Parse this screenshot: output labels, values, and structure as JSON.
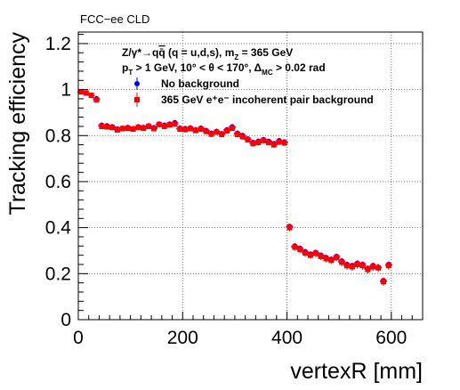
{
  "experiment_label": "FCC−ee CLD",
  "annotation_line1": {
    "parts": [
      "Z/γ*→q",
      "q̄",
      " (q = u,d,s), m",
      "Z",
      " = 365 GeV"
    ]
  },
  "annotation_line2": {
    "parts": [
      "p",
      "T",
      " > 1 GeV, 10° < θ < 170°, Δ",
      "MC",
      " > 0.02 rad"
    ]
  },
  "chart_data": {
    "type": "scatter",
    "xlabel": "vertexR [mm]",
    "ylabel": "Tracking efficiency",
    "xlim": [
      0,
      660
    ],
    "ylim": [
      0,
      1.25
    ],
    "x_ticks": [
      0,
      200,
      400,
      600
    ],
    "x_tick_labels": [
      "0",
      "200",
      "400",
      "600"
    ],
    "y_ticks": [
      0,
      0.2,
      0.4,
      0.6,
      0.8,
      1.0,
      1.2
    ],
    "y_tick_labels": [
      "0",
      "0.2",
      "0.4",
      "0.6",
      "0.8",
      "1",
      "1.2"
    ],
    "grid": true,
    "legend_position": "top-left",
    "series": [
      {
        "name": "No background",
        "color": "#0000ff",
        "marker": "circle",
        "x": [
          5,
          15,
          25,
          35,
          45,
          55,
          65,
          75,
          85,
          95,
          105,
          115,
          125,
          135,
          145,
          155,
          165,
          175,
          185,
          195,
          205,
          215,
          225,
          235,
          245,
          255,
          265,
          275,
          285,
          295,
          305,
          315,
          325,
          335,
          345,
          355,
          365,
          375,
          385,
          395,
          405,
          415,
          425,
          435,
          445,
          455,
          465,
          475,
          485,
          495,
          505,
          515,
          525,
          535,
          545,
          555,
          565,
          575,
          585,
          595
        ],
        "values": [
          0.99,
          0.985,
          0.975,
          0.96,
          0.845,
          0.842,
          0.838,
          0.828,
          0.832,
          0.835,
          0.83,
          0.838,
          0.835,
          0.842,
          0.834,
          0.85,
          0.845,
          0.85,
          0.856,
          0.832,
          0.83,
          0.833,
          0.825,
          0.832,
          0.822,
          0.81,
          0.818,
          0.808,
          0.825,
          0.838,
          0.81,
          0.8,
          0.785,
          0.77,
          0.775,
          0.782,
          0.775,
          0.765,
          0.778,
          0.772,
          0.405,
          0.32,
          0.31,
          0.295,
          0.285,
          0.292,
          0.28,
          0.27,
          0.262,
          0.275,
          0.255,
          0.24,
          0.235,
          0.245,
          0.24,
          0.222,
          0.235,
          0.228,
          0.17,
          0.24
        ]
      },
      {
        "name": "365 GeV e⁺e⁻ incoherent pair background",
        "color": "#ff0000",
        "marker": "square",
        "x": [
          5,
          15,
          25,
          35,
          45,
          55,
          65,
          75,
          85,
          95,
          105,
          115,
          125,
          135,
          145,
          155,
          165,
          175,
          185,
          195,
          205,
          215,
          225,
          235,
          245,
          255,
          265,
          275,
          285,
          295,
          305,
          315,
          325,
          335,
          345,
          355,
          365,
          375,
          385,
          395,
          405,
          415,
          425,
          435,
          445,
          455,
          465,
          475,
          485,
          495,
          505,
          515,
          525,
          535,
          545,
          555,
          565,
          575,
          585,
          595
        ],
        "values": [
          0.99,
          0.985,
          0.975,
          0.955,
          0.84,
          0.838,
          0.835,
          0.825,
          0.83,
          0.832,
          0.828,
          0.835,
          0.832,
          0.84,
          0.83,
          0.848,
          0.84,
          0.846,
          0.85,
          0.828,
          0.826,
          0.83,
          0.822,
          0.828,
          0.818,
          0.806,
          0.815,
          0.805,
          0.82,
          0.832,
          0.805,
          0.795,
          0.782,
          0.765,
          0.77,
          0.778,
          0.77,
          0.76,
          0.772,
          0.768,
          0.4,
          0.315,
          0.305,
          0.29,
          0.28,
          0.288,
          0.275,
          0.265,
          0.258,
          0.27,
          0.25,
          0.235,
          0.23,
          0.24,
          0.235,
          0.218,
          0.23,
          0.225,
          0.165,
          0.235
        ],
        "errors": [
          0.008,
          0.008,
          0.008,
          0.01,
          0.012,
          0.012,
          0.012,
          0.012,
          0.012,
          0.012,
          0.012,
          0.012,
          0.012,
          0.012,
          0.012,
          0.012,
          0.012,
          0.012,
          0.012,
          0.012,
          0.012,
          0.012,
          0.012,
          0.012,
          0.012,
          0.012,
          0.012,
          0.012,
          0.012,
          0.012,
          0.013,
          0.013,
          0.013,
          0.013,
          0.013,
          0.013,
          0.013,
          0.013,
          0.013,
          0.013,
          0.016,
          0.016,
          0.016,
          0.016,
          0.016,
          0.016,
          0.016,
          0.016,
          0.016,
          0.016,
          0.018,
          0.018,
          0.018,
          0.018,
          0.018,
          0.018,
          0.018,
          0.018,
          0.018,
          0.018
        ]
      }
    ]
  }
}
